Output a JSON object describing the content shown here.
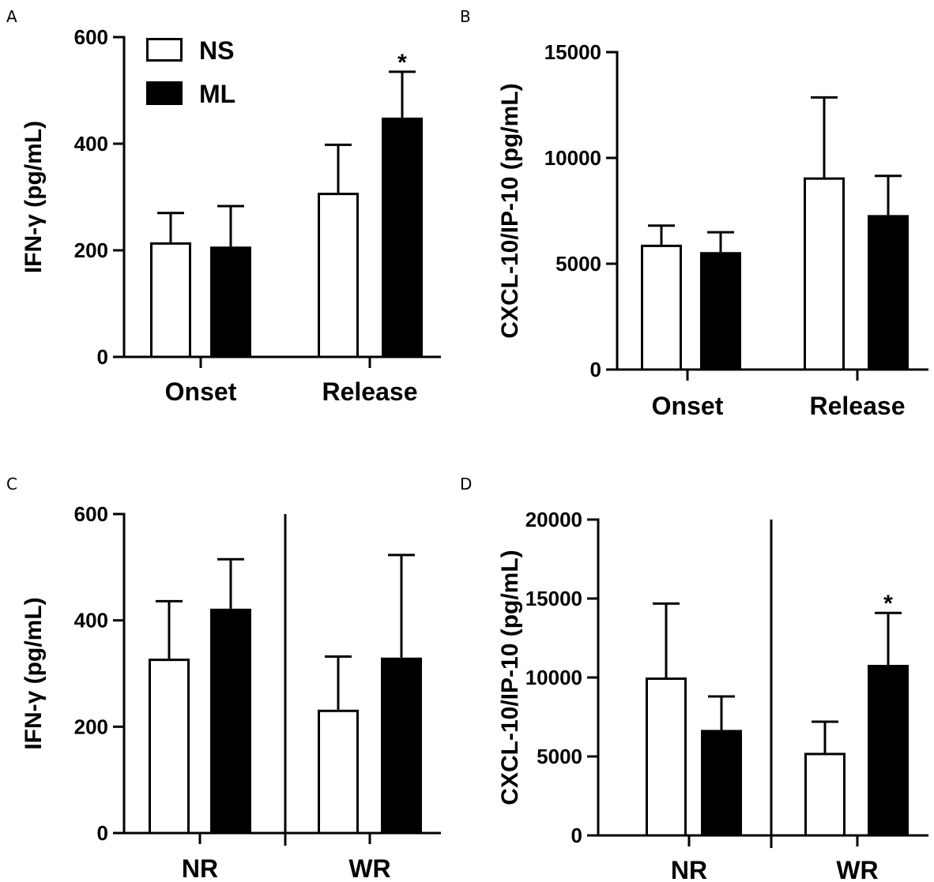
{
  "legend": [
    {
      "name": "NS",
      "fill": "#ffffff"
    },
    {
      "name": "ML",
      "fill": "#000000"
    }
  ],
  "colors": {
    "stroke": "#000000",
    "open_fill": "#ffffff",
    "solid_fill": "#000000"
  },
  "chart_data": [
    {
      "panel": "A",
      "type": "bar",
      "ylabel": "IFN-γ (pg/mL)",
      "ylim": [
        0,
        600
      ],
      "yticks": [
        0,
        200,
        400,
        600
      ],
      "categories": [
        "Onset",
        "Release"
      ],
      "series": [
        {
          "name": "NS",
          "values": [
            215,
            308
          ],
          "errors": [
            55,
            90
          ]
        },
        {
          "name": "ML",
          "values": [
            207,
            449
          ],
          "errors": [
            76,
            86
          ]
        }
      ],
      "significance": [
        {
          "category": "Release",
          "series": "ML",
          "mark": "*"
        }
      ],
      "divider": false,
      "legend": true
    },
    {
      "panel": "B",
      "type": "bar",
      "ylabel": "CXCL-10/IP-10 (pg/mL)",
      "ylim": [
        0,
        15000
      ],
      "yticks": [
        0,
        5000,
        10000,
        15000
      ],
      "categories": [
        "Onset",
        "Release"
      ],
      "series": [
        {
          "name": "NS",
          "values": [
            5900,
            9080
          ],
          "errors": [
            900,
            3780
          ]
        },
        {
          "name": "ML",
          "values": [
            5550,
            7300
          ],
          "errors": [
            940,
            1850
          ]
        }
      ],
      "significance": [],
      "divider": false,
      "legend": false
    },
    {
      "panel": "C",
      "type": "bar",
      "ylabel": "IFN-γ (pg/mL)",
      "ylim": [
        0,
        600
      ],
      "yticks": [
        0,
        200,
        400,
        600
      ],
      "categories": [
        "NR",
        "WR"
      ],
      "series": [
        {
          "name": "NS",
          "values": [
            328,
            232
          ],
          "errors": [
            108,
            100
          ]
        },
        {
          "name": "ML",
          "values": [
            422,
            330
          ],
          "errors": [
            93,
            193
          ]
        }
      ],
      "significance": [],
      "divider": true,
      "legend": false
    },
    {
      "panel": "D",
      "type": "bar",
      "ylabel": "CXCL-10/IP-10 (pg/mL)",
      "ylim": [
        0,
        20000
      ],
      "yticks": [
        0,
        5000,
        10000,
        15000,
        20000
      ],
      "categories": [
        "NR",
        "WR"
      ],
      "series": [
        {
          "name": "NS",
          "values": [
            10000,
            5230
          ],
          "errors": [
            4680,
            1970
          ]
        },
        {
          "name": "ML",
          "values": [
            6680,
            10800
          ],
          "errors": [
            2120,
            3290
          ]
        }
      ],
      "significance": [
        {
          "category": "WR",
          "series": "ML",
          "mark": "*"
        }
      ],
      "divider": true,
      "legend": false
    }
  ]
}
